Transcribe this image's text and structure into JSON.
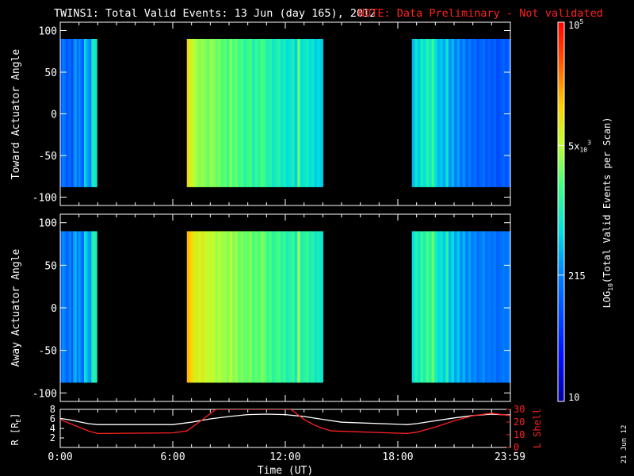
{
  "header": {
    "title": "TWINS1: Total Valid Events: 13 Jun (day 165), 2012",
    "note": "NOTE: Data Preliminary - Not validated",
    "note_color": "#ff2020"
  },
  "side_date": "21 Jun 12",
  "colorbar": {
    "label": "LOG10(Total Valid Events per Scan)",
    "label_parts": {
      "pre": "LOG",
      "sub": "10",
      "post": "(Total Valid Events per Scan)"
    },
    "ticks": [
      {
        "value": 100000,
        "main": "10",
        "sup": "5",
        "sub": ""
      },
      {
        "value": 5000,
        "main": "5x",
        "sub": "10",
        "sup": "3"
      },
      {
        "value": 215,
        "main": "215",
        "sub": "",
        "sup": ""
      },
      {
        "value": 10,
        "main": "10",
        "sub": "",
        "sup": ""
      }
    ],
    "range": [
      10,
      100000
    ],
    "scale": "log",
    "colormap": "rainbow (blue-cyan-green-yellow-red)"
  },
  "panels": [
    {
      "id": "toward",
      "ylabel": "Toward Actuator Angle"
    },
    {
      "id": "away",
      "ylabel": "Away Actuator Angle"
    }
  ],
  "bottom_panel": {
    "ylabel_left": "R [RE]",
    "ylabel_left_parts": {
      "pre": "R [R",
      "sub": "E",
      "post": "]"
    },
    "ylabel_right": "L Shell",
    "ylabel_right_color": "#ff2020",
    "left_ticks": [
      "8",
      "6",
      "4",
      "2"
    ],
    "right_ticks": [
      "30",
      "20",
      "10",
      "0"
    ]
  },
  "xaxis": {
    "label": "Time (UT)",
    "ticks": [
      "0:00",
      "6:00",
      "12:00",
      "18:00",
      "23:59"
    ]
  },
  "chart_data": [
    {
      "type": "heatmap",
      "title": "TWINS1: Total Valid Events: 13 Jun (day 165), 2012",
      "ylabel": "Toward Actuator Angle",
      "xlabel": "",
      "xlim": [
        0,
        24
      ],
      "ylim": [
        -110,
        110
      ],
      "yticks": [
        100,
        50,
        0,
        -50,
        -100
      ],
      "data_angle_range": [
        -88,
        90
      ],
      "segments": [
        {
          "t_start": 0.0,
          "t_end": 1.95,
          "log_counts": [
            2.0,
            2.3,
            2.2,
            2.0,
            2.1,
            2.2,
            1.9,
            2.3,
            2.5,
            2.1,
            2.4,
            2.2,
            2.0,
            2.8,
            2.6,
            2.4,
            2.3,
            2.9,
            3.0,
            2.9
          ]
        },
        {
          "t_start": 6.75,
          "t_end": 14.0,
          "log_counts": [
            4.0,
            3.8,
            3.7,
            3.6,
            3.5,
            3.6,
            3.5,
            3.4,
            3.6,
            3.5,
            3.4,
            3.5,
            3.3,
            3.4,
            3.2,
            3.5,
            3.3,
            3.4,
            3.2,
            3.3,
            3.1,
            3.2,
            3.3,
            3.0,
            3.2,
            3.1,
            3.3,
            3.2,
            3.0,
            3.1,
            2.9,
            3.0,
            3.1,
            2.9,
            3.0,
            2.8,
            2.9,
            3.0,
            2.7,
            3.4,
            2.8,
            2.9,
            3.0,
            2.8,
            2.9,
            2.7,
            2.8,
            2.7
          ]
        },
        {
          "t_start": 18.75,
          "t_end": 24.0,
          "log_counts": [
            2.6,
            2.9,
            2.7,
            3.0,
            2.8,
            3.1,
            2.9,
            3.2,
            2.8,
            2.6,
            2.7,
            2.5,
            2.9,
            2.4,
            2.6,
            2.3,
            2.5,
            2.2,
            2.4,
            2.1,
            2.3,
            2.1,
            2.2,
            2.0,
            2.1,
            2.2,
            2.0,
            2.1,
            2.0,
            2.1,
            1.9,
            2.0,
            2.1,
            2.0,
            2.1
          ]
        }
      ]
    },
    {
      "type": "heatmap",
      "title": "",
      "ylabel": "Away Actuator Angle",
      "xlabel": "",
      "xlim": [
        0,
        24
      ],
      "ylim": [
        -110,
        110
      ],
      "yticks": [
        100,
        50,
        0,
        -50,
        -100
      ],
      "data_angle_range": [
        -88,
        90
      ],
      "segments": [
        {
          "t_start": 0.0,
          "t_end": 1.95,
          "log_counts": [
            2.1,
            2.4,
            2.3,
            2.1,
            2.2,
            2.4,
            2.0,
            2.5,
            2.6,
            2.2,
            2.5,
            2.3,
            2.1,
            2.9,
            2.7,
            2.5,
            2.4,
            3.0,
            3.1,
            3.0
          ]
        },
        {
          "t_start": 6.75,
          "t_end": 14.0,
          "log_counts": [
            4.2,
            4.1,
            3.9,
            3.9,
            3.8,
            3.9,
            3.8,
            3.7,
            3.8,
            3.7,
            3.6,
            3.7,
            3.6,
            3.6,
            3.5,
            3.7,
            3.5,
            3.6,
            3.4,
            3.5,
            3.4,
            3.4,
            3.5,
            3.3,
            3.4,
            3.3,
            3.5,
            3.4,
            3.2,
            3.3,
            3.1,
            3.2,
            3.3,
            3.1,
            3.2,
            3.0,
            3.1,
            3.2,
            2.9,
            3.6,
            3.0,
            3.1,
            3.2,
            3.0,
            3.1,
            2.9,
            3.0,
            2.9
          ]
        },
        {
          "t_start": 18.75,
          "t_end": 24.0,
          "log_counts": [
            2.8,
            3.1,
            2.9,
            3.2,
            3.0,
            3.3,
            3.1,
            3.4,
            3.0,
            2.8,
            2.9,
            2.7,
            3.1,
            2.6,
            2.8,
            2.5,
            2.7,
            2.4,
            2.6,
            2.3,
            2.5,
            2.3,
            2.4,
            2.2,
            2.3,
            2.4,
            2.2,
            2.3,
            2.2,
            2.3,
            2.1,
            2.2,
            2.3,
            2.2,
            2.3
          ]
        }
      ]
    },
    {
      "type": "line",
      "title": "",
      "xlabel": "Time (UT)",
      "xlim": [
        0,
        24
      ],
      "ylim_left": [
        0,
        8
      ],
      "ylim_right": [
        0,
        30
      ],
      "series": [
        {
          "name": "R [RE]",
          "axis": "left",
          "color": "#ffffff",
          "x": [
            0,
            0.5,
            1,
            1.5,
            2,
            6,
            7,
            8,
            9,
            10,
            11,
            12,
            13,
            14,
            15,
            18.5,
            19,
            20,
            21,
            22,
            23,
            24
          ],
          "y": [
            6.1,
            5.8,
            5.4,
            5.0,
            4.8,
            4.8,
            5.3,
            6.0,
            6.5,
            6.9,
            7.0,
            6.9,
            6.5,
            5.9,
            5.3,
            4.8,
            5.0,
            5.6,
            6.2,
            6.7,
            7.0,
            6.8
          ]
        },
        {
          "name": "L Shell",
          "axis": "right",
          "color": "#ff2020",
          "x": [
            0,
            0.5,
            1,
            1.5,
            2,
            6,
            6.75,
            7.5,
            8.3,
            12.3,
            13,
            13.5,
            14,
            14.5,
            18.5,
            19,
            20,
            21,
            22,
            23,
            24
          ],
          "y": [
            22,
            19,
            16,
            13,
            11,
            11.5,
            13,
            21,
            30,
            30,
            22,
            18,
            15,
            13,
            11,
            12,
            16,
            21,
            25,
            27,
            25
          ]
        }
      ]
    }
  ]
}
